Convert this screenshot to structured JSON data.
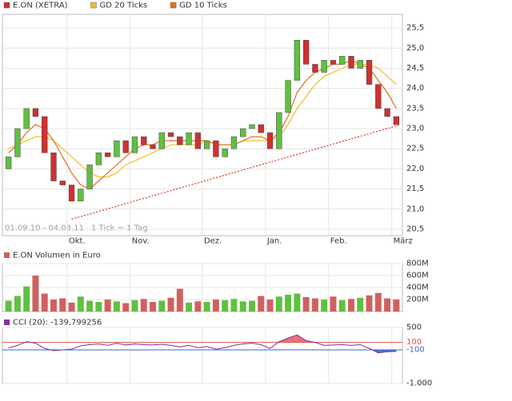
{
  "chart_data": [
    {
      "type": "candlestick",
      "legend": [
        {
          "name": "E.ON (XETRA)",
          "color": "#d03030"
        },
        {
          "name": "GD 20 Ticks",
          "color": "#f0c020"
        },
        {
          "name": "GD 10 Ticks",
          "color": "#e07020"
        }
      ],
      "range_note": "01.09.10 - 04.03.11",
      "tick_note": "1 Tick = 1 Tag",
      "categories": [
        null,
        null,
        null,
        null,
        null,
        null,
        null,
        "Okt.",
        null,
        null,
        null,
        null,
        null,
        null,
        "Nov.",
        null,
        null,
        null,
        null,
        null,
        null,
        null,
        "Dez.",
        null,
        null,
        null,
        null,
        null,
        null,
        "Jan.",
        null,
        null,
        null,
        null,
        null,
        null,
        "Feb.",
        null,
        null,
        null,
        null,
        null,
        null,
        "März"
      ],
      "open": [
        22.0,
        22.3,
        23.0,
        23.5,
        23.3,
        22.4,
        21.7,
        21.6,
        21.2,
        21.5,
        22.1,
        22.4,
        22.3,
        22.7,
        22.4,
        22.8,
        22.6,
        22.5,
        22.9,
        22.8,
        22.6,
        22.9,
        22.5,
        22.7,
        22.3,
        22.5,
        22.8,
        23.0,
        23.1,
        22.9,
        22.5,
        23.4,
        24.2,
        25.2,
        24.6,
        24.4,
        24.7,
        24.6,
        24.8,
        24.5,
        24.7,
        24.1,
        23.5,
        23.3
      ],
      "close": [
        22.3,
        23.0,
        23.5,
        23.3,
        22.4,
        21.7,
        21.6,
        21.2,
        21.5,
        22.1,
        22.4,
        22.3,
        22.7,
        22.4,
        22.8,
        22.6,
        22.5,
        22.9,
        22.8,
        22.6,
        22.9,
        22.5,
        22.7,
        22.3,
        22.5,
        22.8,
        23.0,
        23.1,
        22.9,
        22.5,
        23.4,
        24.2,
        25.2,
        24.6,
        24.4,
        24.7,
        24.6,
        24.8,
        24.5,
        24.7,
        24.1,
        23.5,
        23.3,
        23.1
      ],
      "series": [
        {
          "name": "GD 20 Ticks",
          "color": "#f0c020",
          "values": [
            22.5,
            22.6,
            22.7,
            22.8,
            22.8,
            22.7,
            22.5,
            22.3,
            22.1,
            21.9,
            21.8,
            21.8,
            21.9,
            22.1,
            22.2,
            22.3,
            22.4,
            22.5,
            22.6,
            22.6,
            22.6,
            22.6,
            22.7,
            22.6,
            22.6,
            22.6,
            22.7,
            22.7,
            22.7,
            22.7,
            22.8,
            23.1,
            23.5,
            23.8,
            24.1,
            24.3,
            24.4,
            24.5,
            24.6,
            24.6,
            24.6,
            24.5,
            24.3,
            24.1
          ]
        },
        {
          "name": "GD 10 Ticks",
          "color": "#e07020",
          "values": [
            22.4,
            22.6,
            22.9,
            23.1,
            23.0,
            22.7,
            22.3,
            21.9,
            21.6,
            21.5,
            21.7,
            21.9,
            22.1,
            22.3,
            22.5,
            22.6,
            22.6,
            22.7,
            22.7,
            22.7,
            22.7,
            22.7,
            22.7,
            22.6,
            22.6,
            22.6,
            22.7,
            22.8,
            22.8,
            22.7,
            22.9,
            23.3,
            23.9,
            24.2,
            24.4,
            24.5,
            24.6,
            24.6,
            24.7,
            24.6,
            24.5,
            24.2,
            23.9,
            23.5
          ]
        }
      ],
      "trendline": {
        "x": [
          7,
          43.5
        ],
        "y": [
          20.75,
          23.1
        ],
        "color": "#e03030"
      },
      "ylim": [
        20.34,
        25.84
      ],
      "yticks": [
        {
          "value": 20.5,
          "label": "20,5"
        },
        {
          "value": 21,
          "label": "21,0"
        },
        {
          "value": 21.5,
          "label": "21,5"
        },
        {
          "value": 22,
          "label": "22,0"
        },
        {
          "value": 22.5,
          "label": "22,5"
        },
        {
          "value": 23,
          "label": "23,0"
        },
        {
          "value": 23.5,
          "label": "23,5"
        },
        {
          "value": 24,
          "label": "24,0"
        },
        {
          "value": 24.5,
          "label": "24,5"
        },
        {
          "value": 25,
          "label": "25,0"
        },
        {
          "value": 25.5,
          "label": "25,5"
        }
      ]
    },
    {
      "type": "bar",
      "title": "E.ON Volumen in Euro",
      "color": "#d06060",
      "values": [
        180000000,
        260000000,
        420000000,
        600000000,
        300000000,
        200000000,
        220000000,
        150000000,
        250000000,
        180000000,
        160000000,
        200000000,
        170000000,
        140000000,
        190000000,
        210000000,
        160000000,
        180000000,
        230000000,
        380000000,
        150000000,
        170000000,
        160000000,
        200000000,
        190000000,
        210000000,
        170000000,
        180000000,
        260000000,
        200000000,
        250000000,
        280000000,
        300000000,
        240000000,
        220000000,
        200000000,
        250000000,
        190000000,
        210000000,
        230000000,
        270000000,
        310000000,
        220000000,
        200000000
      ],
      "ylim": [
        0,
        800000000
      ],
      "yticks": [
        {
          "value": 200000000,
          "label": "200M"
        },
        {
          "value": 400000000,
          "label": "400M"
        },
        {
          "value": 600000000,
          "label": "600M"
        },
        {
          "value": 800000000,
          "label": "800M"
        }
      ]
    },
    {
      "type": "line",
      "title": "CCI (20): -139,799256",
      "color": "#8030a0",
      "values": [
        -50,
        20,
        120,
        80,
        -60,
        -120,
        -100,
        -80,
        10,
        40,
        60,
        20,
        80,
        30,
        60,
        40,
        30,
        50,
        20,
        -20,
        20,
        -40,
        -10,
        -80,
        -40,
        20,
        60,
        80,
        40,
        -60,
        120,
        220,
        300,
        150,
        100,
        20,
        30,
        40,
        20,
        40,
        -60,
        -180,
        -150,
        -140
      ],
      "ref_lines": [
        {
          "value": 100,
          "color": "#e05050"
        },
        {
          "value": -100,
          "color": "#4060d0"
        }
      ],
      "ylim": [
        -1000,
        500
      ],
      "yticks": [
        500,
        {
          "value": -1000,
          "label": "-1.000"
        }
      ]
    }
  ]
}
